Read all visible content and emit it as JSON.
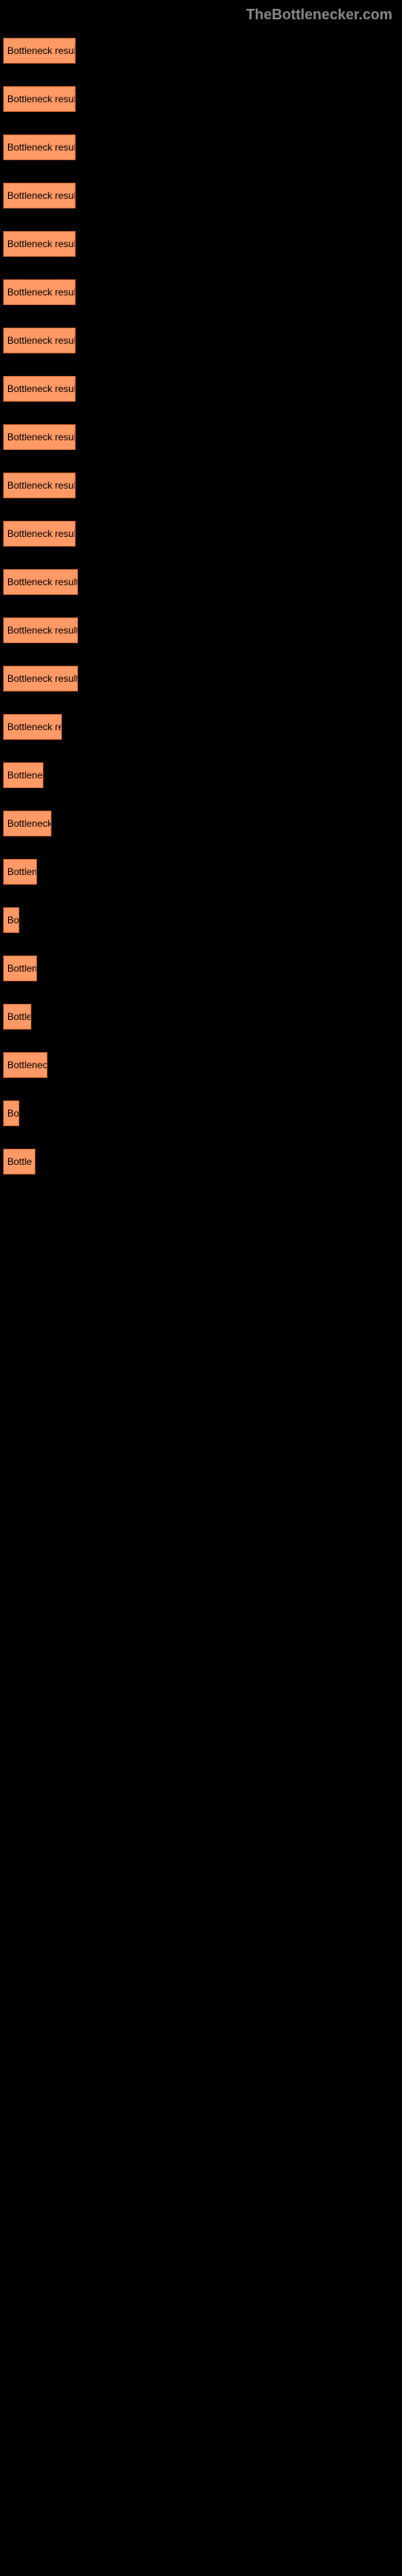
{
  "header": {
    "title": "TheBottlenecker.com"
  },
  "buttons": [
    {
      "label": "Bottleneck result",
      "width": 90
    },
    {
      "label": "Bottleneck result",
      "width": 90
    },
    {
      "label": "Bottleneck result",
      "width": 90
    },
    {
      "label": "Bottleneck result",
      "width": 90
    },
    {
      "label": "Bottleneck result",
      "width": 90
    },
    {
      "label": "Bottleneck result",
      "width": 90
    },
    {
      "label": "Bottleneck result",
      "width": 90
    },
    {
      "label": "Bottleneck result",
      "width": 90
    },
    {
      "label": "Bottleneck result",
      "width": 90
    },
    {
      "label": "Bottleneck result",
      "width": 90
    },
    {
      "label": "Bottleneck result",
      "width": 90
    },
    {
      "label": "Bottleneck result",
      "width": 93
    },
    {
      "label": "Bottleneck result",
      "width": 93
    },
    {
      "label": "Bottleneck result",
      "width": 93
    },
    {
      "label": "Bottleneck re",
      "width": 73
    },
    {
      "label": "Bottlene",
      "width": 50
    },
    {
      "label": "Bottleneck",
      "width": 60
    },
    {
      "label": "Bottlen",
      "width": 42
    },
    {
      "label": "Bo",
      "width": 20
    },
    {
      "label": "Bottlen",
      "width": 42
    },
    {
      "label": "Bottle",
      "width": 35
    },
    {
      "label": "Bottlenec",
      "width": 55
    },
    {
      "label": "Bo",
      "width": 20
    },
    {
      "label": "Bottle",
      "width": 40
    }
  ],
  "styles": {
    "button_bg": "#ff9966",
    "button_border": "#cc6633",
    "body_bg": "#000000",
    "header_color": "#888888"
  }
}
